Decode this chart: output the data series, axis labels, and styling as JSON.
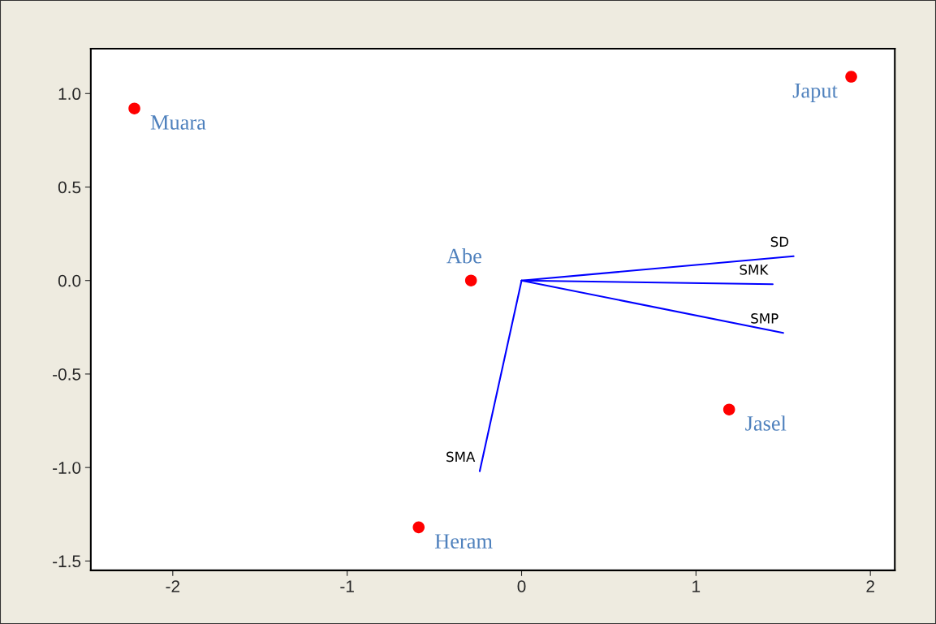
{
  "chart_data": {
    "type": "scatter",
    "series": [
      {
        "color": "#ff0000",
        "marker": "circle",
        "x": [
          -2.22,
          1.89,
          -0.29,
          1.19,
          -0.59
        ],
        "values": [
          0.92,
          1.09,
          0.0,
          -0.69,
          -1.32
        ]
      },
      {
        "type": "line",
        "marker": "none",
        "color": "#0000ff",
        "x": [
          0,
          1.56
        ],
        "values": [
          0,
          0.13
        ]
      },
      {
        "type": "line",
        "marker": "none",
        "color": "#0000ff",
        "x": [
          0,
          1.44
        ],
        "values": [
          0,
          -0.02
        ]
      },
      {
        "type": "line",
        "marker": "none",
        "color": "#0000ff",
        "x": [
          0,
          1.5
        ],
        "values": [
          0,
          -0.28
        ]
      },
      {
        "type": "line",
        "marker": "none",
        "color": "#0000ff",
        "x": [
          0,
          -0.24
        ],
        "values": [
          0,
          -1.02
        ]
      }
    ],
    "annotations": [
      {
        "text": "Muara",
        "x": -2.22,
        "y": 0.92
      },
      {
        "text": "Japut",
        "x": 1.89,
        "y": 1.09
      },
      {
        "text": "Abe",
        "x": -0.29,
        "y": 0.0
      },
      {
        "text": "Jasel",
        "x": 1.19,
        "y": -0.69
      },
      {
        "text": "Heram",
        "x": -0.59,
        "y": -1.32
      },
      {
        "text": "SD",
        "x": 1.56,
        "y": 0.13
      },
      {
        "text": "SMK",
        "x": 1.44,
        "y": -0.02
      },
      {
        "text": "SMP",
        "x": 1.5,
        "y": -0.28
      },
      {
        "text": "SMA",
        "x": -0.24,
        "y": -1.02
      }
    ],
    "xlim": [
      -2.47,
      2.14
    ],
    "ylim": [
      -1.55,
      1.24
    ],
    "xticks": [
      -2,
      -1,
      0,
      1,
      2
    ],
    "yticks": [
      {
        "value": 1,
        "label": "1.0"
      },
      0.5,
      {
        "value": 0,
        "label": "0.0"
      },
      -0.5,
      {
        "value": -1,
        "label": "-1.0"
      },
      -1.5
    ],
    "grid": false,
    "legend": false
  }
}
